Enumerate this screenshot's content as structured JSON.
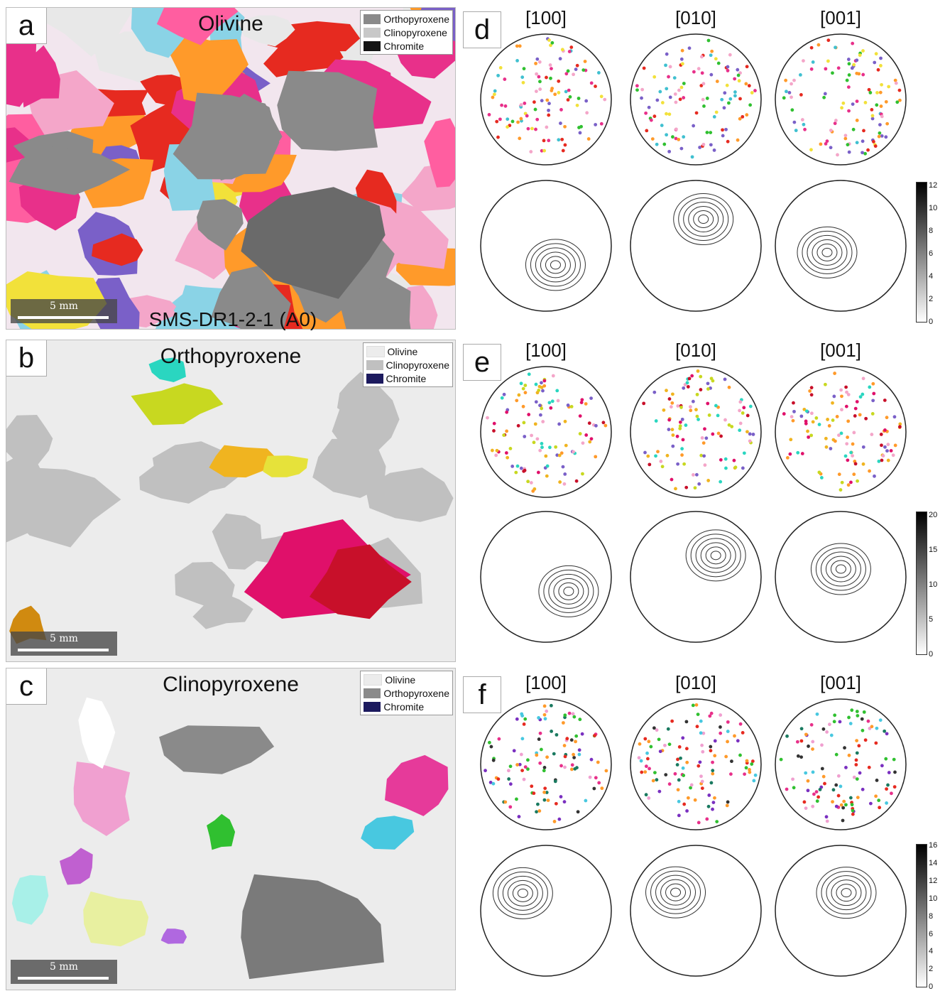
{
  "sample_label": "SMS-DR1-2-1 (A0)",
  "scale_label": "5 mm",
  "colors": {
    "olivine_light": "#ececec",
    "opx_gray": "#8c8c8c",
    "cpx_light": "#c6c6c6",
    "chromite_black": "#141414",
    "chromite_navy": "#1c1a5e"
  },
  "maps": [
    {
      "letter": "a",
      "title": "Olivine",
      "legend": [
        {
          "label": "Orthopyroxene",
          "color": "#8a8a8a"
        },
        {
          "label": "Clinopyroxene",
          "color": "#c8c8c8"
        },
        {
          "label": "Chromite",
          "color": "#141414"
        }
      ]
    },
    {
      "letter": "b",
      "title": "Orthopyroxene",
      "legend": [
        {
          "label": "Olivine",
          "color": "#ececec"
        },
        {
          "label": "Clinopyroxene",
          "color": "#c0c0c0"
        },
        {
          "label": "Chromite",
          "color": "#1c1a5e"
        }
      ]
    },
    {
      "letter": "c",
      "title": "Clinopyroxene",
      "legend": [
        {
          "label": "Olivine",
          "color": "#ececec"
        },
        {
          "label": "Orthopyroxene",
          "color": "#8a8a8a"
        },
        {
          "label": "Chromite",
          "color": "#1c1a5e"
        }
      ]
    }
  ],
  "pole_figures": [
    {
      "letter": "d",
      "axes": [
        "[100]",
        "[010]",
        "[001]"
      ],
      "colorbar": {
        "min": 0,
        "max": 12,
        "ticks": [
          0,
          2,
          4,
          6,
          8,
          10,
          12
        ]
      }
    },
    {
      "letter": "e",
      "axes": [
        "[100]",
        "[010]",
        "[001]"
      ],
      "colorbar": {
        "min": 0,
        "max": 20,
        "ticks": [
          0,
          5,
          10,
          15,
          20
        ]
      }
    },
    {
      "letter": "f",
      "axes": [
        "[100]",
        "[010]",
        "[001]"
      ],
      "colorbar": {
        "min": 0,
        "max": 16,
        "ticks": [
          0,
          2,
          4,
          6,
          8,
          10,
          12,
          14,
          16
        ]
      }
    }
  ]
}
